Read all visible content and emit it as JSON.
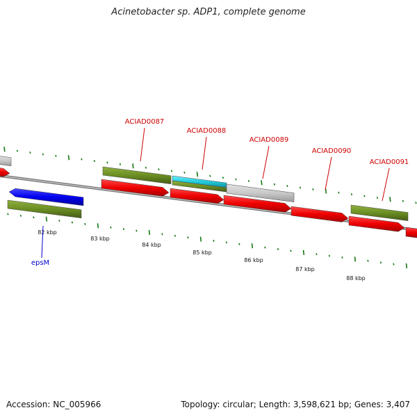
{
  "title": "Acinetobacter sp. ADP1, complete genome",
  "footer": {
    "accession": "Accession: NC_005966",
    "stats": "Topology: circular; Length: 3,598,621 bp; Genes: 3,407"
  },
  "colors": {
    "cds_red": "#ee0000",
    "gene_olive": "#6b8e23",
    "gray_feature": "#c8c8c8",
    "cyan_feature": "#22ccdd",
    "blue_gene": "#0000ee",
    "tick_green": "#117711",
    "red_label": "#cc0000",
    "blue_label": "#0000cc"
  },
  "kbp_labels": [
    "82 kbp",
    "83 kbp",
    "84 kbp",
    "85 kbp",
    "86 kbp",
    "87 kbp",
    "88 kbp"
  ],
  "gene_labels": [
    {
      "id": "ACIAD0087",
      "color": "red"
    },
    {
      "id": "ACIAD0088",
      "color": "red"
    },
    {
      "id": "ACIAD0089",
      "color": "red"
    },
    {
      "id": "ACIAD0090",
      "color": "red"
    },
    {
      "id": "ACIAD0091",
      "color": "red"
    },
    {
      "id": "epsM",
      "color": "blue"
    }
  ]
}
